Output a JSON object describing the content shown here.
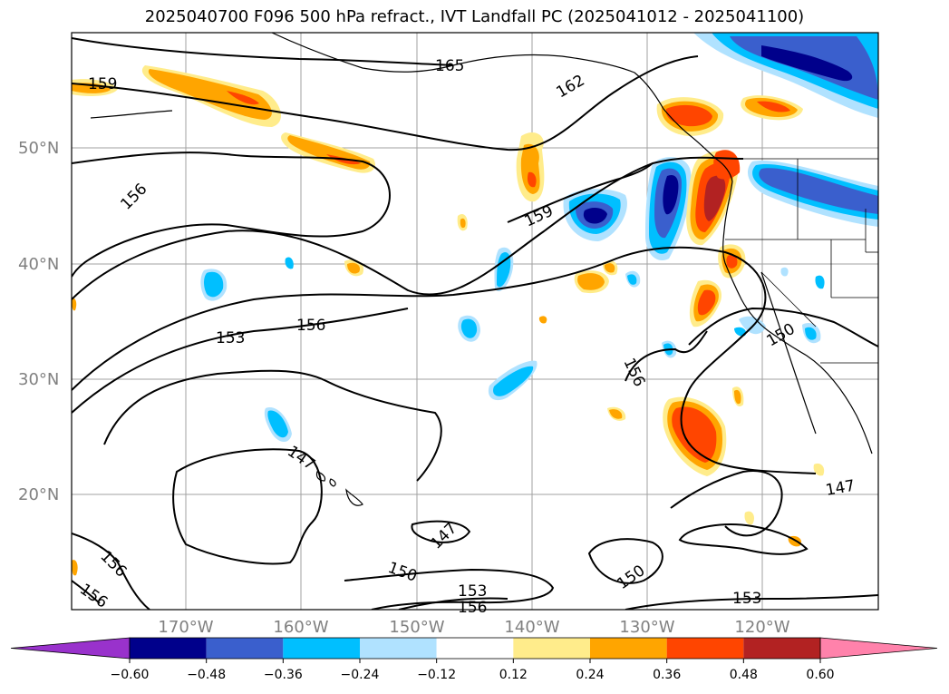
{
  "title": "2025040700 F096 500 hPa refract., IVT Landfall PC (2025041012 - 2025041100)",
  "axes": {
    "lat_labels": [
      "50°N",
      "40°N",
      "30°N",
      "20°N"
    ],
    "lon_labels": [
      "170°W",
      "160°W",
      "150°W",
      "140°W",
      "130°W",
      "120°W"
    ]
  },
  "contour_labels": [
    "165",
    "162",
    "159",
    "159",
    "156",
    "156",
    "156",
    "156",
    "156",
    "156",
    "153",
    "153",
    "153",
    "150",
    "150",
    "150",
    "147",
    "147",
    "147"
  ],
  "colorbar": {
    "ticks": [
      "−0.60",
      "−0.48",
      "−0.36",
      "−0.24",
      "−0.12",
      "0.12",
      "0.24",
      "0.36",
      "0.48",
      "0.60"
    ],
    "colors": [
      "#9932cc",
      "#00008b",
      "#3a5fcd",
      "#00bfff",
      "#b0e2ff",
      "#ffffff",
      "#ffec8b",
      "#ffa500",
      "#ff4500",
      "#b22222",
      "#ff82ab"
    ]
  },
  "colors": {
    "grid": "#a0a0a0",
    "coast": "#000000",
    "contour": "#000000"
  }
}
